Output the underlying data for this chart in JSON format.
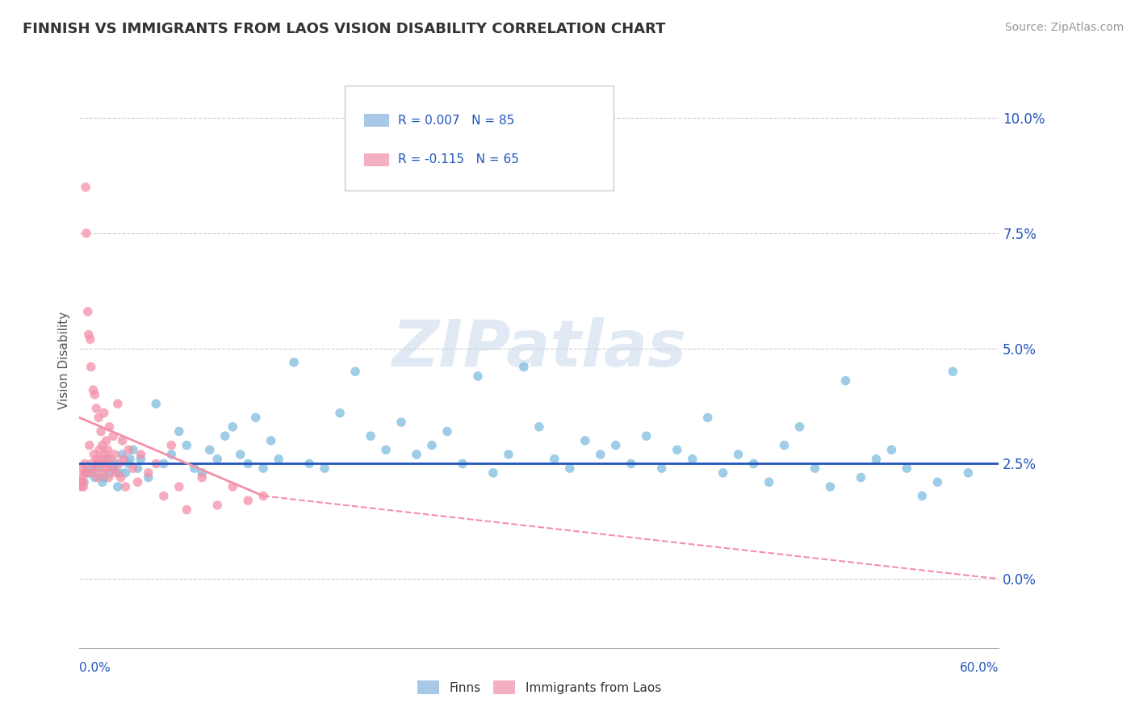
{
  "title": "FINNISH VS IMMIGRANTS FROM LAOS VISION DISABILITY CORRELATION CHART",
  "source": "Source: ZipAtlas.com",
  "ylabel": "Vision Disability",
  "ytick_vals": [
    0.0,
    2.5,
    5.0,
    7.5,
    10.0
  ],
  "xlim": [
    0.0,
    60.0
  ],
  "ylim": [
    -1.5,
    11.0
  ],
  "watermark": "ZIPatlas",
  "finns_color": "#7fbde0",
  "laos_color": "#f490a8",
  "finns_line_color": "#2255bb",
  "laos_line_color": "#f490a8",
  "background_color": "#ffffff",
  "grid_color": "#cccccc",
  "legend_box_color": "#a8c8e8",
  "legend_pink_color": "#f4b0c0",
  "finns_scatter": [
    [
      0.5,
      2.3
    ],
    [
      0.8,
      2.4
    ],
    [
      1.0,
      2.2
    ],
    [
      1.2,
      2.5
    ],
    [
      1.5,
      2.1
    ],
    [
      1.8,
      2.6
    ],
    [
      2.0,
      2.3
    ],
    [
      2.2,
      2.4
    ],
    [
      2.5,
      2.0
    ],
    [
      2.8,
      2.7
    ],
    [
      3.0,
      2.3
    ],
    [
      3.2,
      2.5
    ],
    [
      3.5,
      2.8
    ],
    [
      3.8,
      2.4
    ],
    [
      4.0,
      2.6
    ],
    [
      4.5,
      2.2
    ],
    [
      5.0,
      3.8
    ],
    [
      5.5,
      2.5
    ],
    [
      6.0,
      2.7
    ],
    [
      6.5,
      3.2
    ],
    [
      7.0,
      2.9
    ],
    [
      7.5,
      2.4
    ],
    [
      8.0,
      2.3
    ],
    [
      8.5,
      2.8
    ],
    [
      9.0,
      2.6
    ],
    [
      9.5,
      3.1
    ],
    [
      10.0,
      3.3
    ],
    [
      10.5,
      2.7
    ],
    [
      11.0,
      2.5
    ],
    [
      11.5,
      3.5
    ],
    [
      12.0,
      2.4
    ],
    [
      12.5,
      3.0
    ],
    [
      13.0,
      2.6
    ],
    [
      14.0,
      4.7
    ],
    [
      15.0,
      2.5
    ],
    [
      16.0,
      2.4
    ],
    [
      17.0,
      3.6
    ],
    [
      18.0,
      4.5
    ],
    [
      19.0,
      3.1
    ],
    [
      20.0,
      2.8
    ],
    [
      21.0,
      3.4
    ],
    [
      22.0,
      2.7
    ],
    [
      23.0,
      2.9
    ],
    [
      24.0,
      3.2
    ],
    [
      25.0,
      2.5
    ],
    [
      26.0,
      4.4
    ],
    [
      27.0,
      2.3
    ],
    [
      28.0,
      2.7
    ],
    [
      29.0,
      4.6
    ],
    [
      30.0,
      3.3
    ],
    [
      31.0,
      2.6
    ],
    [
      32.0,
      2.4
    ],
    [
      33.0,
      3.0
    ],
    [
      34.0,
      2.7
    ],
    [
      35.0,
      2.9
    ],
    [
      36.0,
      2.5
    ],
    [
      37.0,
      3.1
    ],
    [
      38.0,
      2.4
    ],
    [
      39.0,
      2.8
    ],
    [
      40.0,
      2.6
    ],
    [
      41.0,
      3.5
    ],
    [
      42.0,
      2.3
    ],
    [
      43.0,
      2.7
    ],
    [
      44.0,
      2.5
    ],
    [
      45.0,
      2.1
    ],
    [
      46.0,
      2.9
    ],
    [
      47.0,
      3.3
    ],
    [
      48.0,
      2.4
    ],
    [
      49.0,
      2.0
    ],
    [
      50.0,
      4.3
    ],
    [
      51.0,
      2.2
    ],
    [
      52.0,
      2.6
    ],
    [
      53.0,
      2.8
    ],
    [
      54.0,
      2.4
    ],
    [
      55.0,
      1.8
    ],
    [
      56.0,
      2.1
    ],
    [
      57.0,
      4.5
    ],
    [
      58.0,
      2.3
    ],
    [
      0.3,
      2.1
    ],
    [
      0.6,
      2.3
    ],
    [
      1.3,
      2.4
    ],
    [
      1.6,
      2.2
    ],
    [
      2.3,
      2.5
    ],
    [
      2.6,
      2.3
    ],
    [
      3.3,
      2.6
    ]
  ],
  "laos_scatter": [
    [
      0.1,
      2.1
    ],
    [
      0.15,
      2.2
    ],
    [
      0.2,
      2.4
    ],
    [
      0.25,
      2.0
    ],
    [
      0.3,
      2.3
    ],
    [
      0.35,
      2.5
    ],
    [
      0.4,
      8.5
    ],
    [
      0.45,
      7.5
    ],
    [
      0.5,
      2.3
    ],
    [
      0.55,
      5.8
    ],
    [
      0.6,
      5.3
    ],
    [
      0.65,
      2.9
    ],
    [
      0.7,
      5.2
    ],
    [
      0.75,
      4.6
    ],
    [
      0.8,
      2.5
    ],
    [
      0.85,
      2.3
    ],
    [
      0.9,
      4.1
    ],
    [
      0.95,
      2.7
    ],
    [
      1.0,
      4.0
    ],
    [
      1.05,
      2.4
    ],
    [
      1.1,
      3.7
    ],
    [
      1.15,
      2.6
    ],
    [
      1.2,
      2.2
    ],
    [
      1.25,
      3.5
    ],
    [
      1.3,
      2.8
    ],
    [
      1.35,
      2.5
    ],
    [
      1.4,
      3.2
    ],
    [
      1.45,
      2.6
    ],
    [
      1.5,
      2.9
    ],
    [
      1.55,
      2.3
    ],
    [
      1.6,
      3.6
    ],
    [
      1.65,
      2.7
    ],
    [
      1.7,
      2.4
    ],
    [
      1.75,
      3.0
    ],
    [
      1.8,
      2.5
    ],
    [
      1.85,
      2.8
    ],
    [
      1.9,
      2.2
    ],
    [
      1.95,
      3.3
    ],
    [
      2.0,
      2.6
    ],
    [
      2.1,
      2.4
    ],
    [
      2.2,
      3.1
    ],
    [
      2.3,
      2.7
    ],
    [
      2.4,
      2.3
    ],
    [
      2.5,
      3.8
    ],
    [
      2.6,
      2.5
    ],
    [
      2.7,
      2.2
    ],
    [
      2.8,
      3.0
    ],
    [
      2.9,
      2.6
    ],
    [
      3.0,
      2.0
    ],
    [
      3.2,
      2.8
    ],
    [
      3.5,
      2.4
    ],
    [
      3.8,
      2.1
    ],
    [
      4.0,
      2.7
    ],
    [
      4.5,
      2.3
    ],
    [
      5.0,
      2.5
    ],
    [
      5.5,
      1.8
    ],
    [
      6.0,
      2.9
    ],
    [
      6.5,
      2.0
    ],
    [
      7.0,
      1.5
    ],
    [
      8.0,
      2.2
    ],
    [
      9.0,
      1.6
    ],
    [
      10.0,
      2.0
    ],
    [
      11.0,
      1.7
    ],
    [
      12.0,
      1.8
    ],
    [
      0.1,
      2.0
    ],
    [
      0.2,
      2.1
    ]
  ],
  "finns_trend": [
    0.0,
    2.5,
    60.0,
    2.5
  ],
  "laos_trend_solid_start": 0.0,
  "laos_trend_solid_end": 12.0,
  "laos_trend_y_start": 3.5,
  "laos_trend_y_at_solid_end": 1.8,
  "laos_trend_dashed_end": 60.0,
  "laos_trend_y_dashed_end": 0.0
}
